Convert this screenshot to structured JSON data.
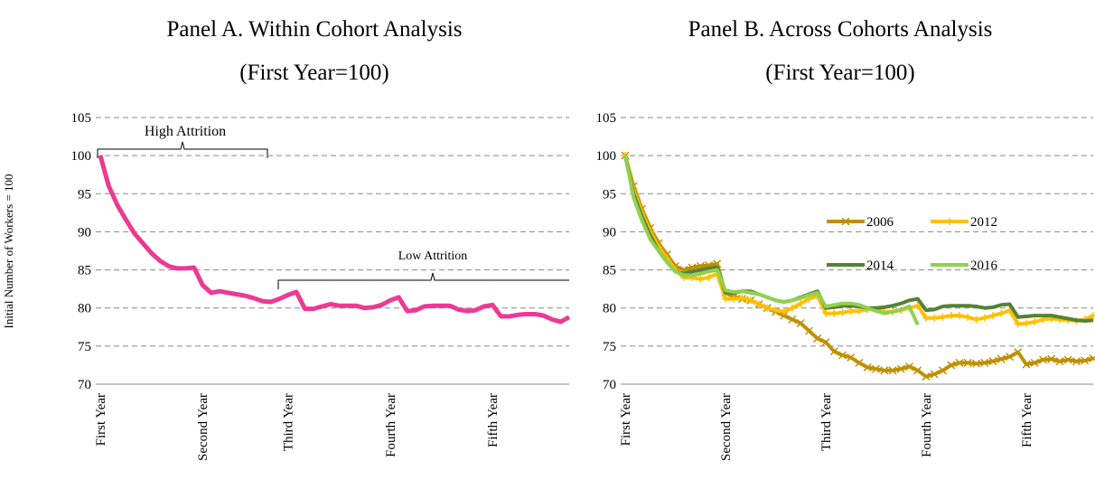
{
  "chart_data": [
    {
      "type": "line",
      "title": "Panel A. Within Cohort Analysis",
      "subtitle": "(First Year=100)",
      "y_label": "Initial Number of Workers = 100",
      "categories": [
        "First Year",
        null,
        null,
        null,
        null,
        null,
        null,
        null,
        null,
        null,
        null,
        null,
        "Second Year",
        null,
        null,
        null,
        null,
        null,
        null,
        null,
        null,
        null,
        "Third Year",
        null,
        null,
        null,
        null,
        null,
        null,
        null,
        null,
        null,
        null,
        null,
        "Fourth Year",
        null,
        null,
        null,
        null,
        null,
        null,
        null,
        null,
        null,
        null,
        null,
        "Fifth Year",
        null,
        null,
        null,
        null,
        null,
        null,
        null,
        null,
        null
      ],
      "color": "#ec3a93",
      "values": [
        100,
        96,
        93.5,
        91.6,
        89.8,
        88.5,
        87.2,
        86.2,
        85.5,
        85.2,
        85.2,
        85.3,
        83,
        82,
        82.2,
        82,
        81.8,
        81.6,
        81.3,
        80.9,
        80.8,
        81.2,
        81.7,
        82.1,
        79.9,
        79.9,
        80.2,
        80.5,
        80.3,
        80.3,
        80.3,
        80,
        80.1,
        80.4,
        81,
        81.4,
        79.6,
        79.7,
        80.2,
        80.3,
        80.3,
        80.3,
        79.8,
        79.6,
        79.7,
        80.2,
        80.4,
        78.9,
        78.9,
        79.1,
        79.2,
        79.2,
        79,
        78.5,
        78.2,
        78.8
      ],
      "annotations": [
        "High Attrition",
        "Low Attrition"
      ],
      "ylim": [
        70,
        105
      ],
      "yticks": [
        70,
        75,
        80,
        85,
        90,
        95,
        100,
        105
      ],
      "grid": true
    },
    {
      "type": "line",
      "title": "Panel B. Across Cohorts Analysis",
      "subtitle": "(First Year=100)",
      "categories": [
        "First Year",
        null,
        null,
        null,
        null,
        null,
        null,
        null,
        null,
        null,
        null,
        null,
        "Second Year",
        null,
        null,
        null,
        null,
        null,
        null,
        null,
        null,
        null,
        null,
        null,
        "Third Year",
        null,
        null,
        null,
        null,
        null,
        null,
        null,
        null,
        null,
        null,
        null,
        "Fourth Year",
        null,
        null,
        null,
        null,
        null,
        null,
        null,
        null,
        null,
        null,
        null,
        "Fifth Year",
        null,
        null,
        null,
        null,
        null,
        null,
        null,
        null
      ],
      "series": [
        {
          "name": "2006",
          "color": "#bf9000",
          "marker": "x",
          "values": [
            100,
            96,
            93,
            90.5,
            88.5,
            87,
            85.5,
            85,
            85.3,
            85.5,
            85.6,
            85.8,
            82,
            81.5,
            81.2,
            81,
            80.5,
            80,
            79.5,
            79,
            78.5,
            78,
            77,
            76,
            75.5,
            74.3,
            73.8,
            73.5,
            72.8,
            72.2,
            72,
            71.8,
            71.8,
            72,
            72.3,
            71.8,
            71,
            71.3,
            71.8,
            72.5,
            72.8,
            72.8,
            72.7,
            72.8,
            73,
            73.3,
            73.6,
            74.2,
            72.6,
            72.8,
            73.2,
            73.3,
            73,
            73.2,
            73,
            73.1,
            73.4
          ]
        },
        {
          "name": "2012",
          "color": "#ffc000",
          "marker": "plus",
          "values": [
            100,
            95.5,
            92.5,
            90,
            88,
            86.5,
            85,
            84,
            84,
            83.8,
            84,
            84.5,
            81.2,
            81.2,
            81.3,
            81,
            80.5,
            80,
            79.7,
            79.5,
            80,
            80.6,
            81.2,
            81.6,
            79.3,
            79.3,
            79.4,
            79.6,
            79.6,
            79.8,
            79.8,
            79.5,
            79.5,
            79.7,
            80,
            80.3,
            78.7,
            78.7,
            78.8,
            79,
            79,
            78.8,
            78.5,
            78.7,
            79,
            79.3,
            79.7,
            77.9,
            78,
            78.2,
            78.5,
            78.6,
            78.5,
            78.4,
            78.3,
            78.5,
            79
          ]
        },
        {
          "name": "2014",
          "color": "#548235",
          "values": [
            100,
            95,
            92,
            89.5,
            87.5,
            86,
            84.8,
            84.5,
            84.8,
            85,
            85.2,
            85.3,
            82,
            82,
            82.2,
            82.2,
            81.8,
            81.4,
            81,
            80.8,
            81,
            81.4,
            81.8,
            82.2,
            80,
            80.1,
            80.3,
            80.3,
            80.2,
            80,
            80,
            80.1,
            80.3,
            80.6,
            81,
            81.2,
            79.7,
            79.8,
            80.2,
            80.3,
            80.3,
            80.3,
            80.2,
            80,
            80.1,
            80.4,
            80.5,
            78.8,
            78.9,
            79,
            79,
            79,
            78.8,
            78.6,
            78.4,
            78.3,
            78.4
          ]
        },
        {
          "name": "2016",
          "color": "#92d050",
          "values": [
            100,
            94.5,
            91.5,
            89,
            87.5,
            86,
            84.8,
            84.3,
            84.3,
            84.5,
            84.8,
            85,
            82.3,
            82.1,
            82.2,
            82,
            81.8,
            81.4,
            81,
            80.8,
            81,
            81.3,
            81.7,
            82,
            80.2,
            80.4,
            80.6,
            80.6,
            80.4,
            80,
            79.6,
            79.3,
            79.5,
            79.8,
            80.2,
            77.8,
            null,
            null,
            null,
            null,
            null,
            null,
            null,
            null,
            null,
            null,
            null,
            null,
            null,
            null,
            null,
            null,
            null,
            null,
            null,
            null,
            null
          ]
        }
      ],
      "ylim": [
        70,
        105
      ],
      "yticks": [
        70,
        75,
        80,
        85,
        90,
        95,
        100,
        105
      ],
      "grid": true
    }
  ]
}
